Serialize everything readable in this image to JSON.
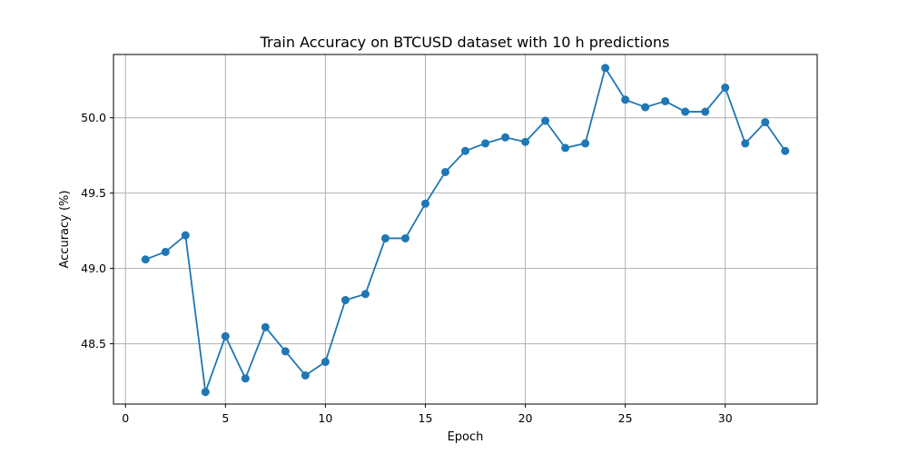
{
  "chart_data": {
    "type": "line",
    "title": "Train Accuracy on BTCUSD dataset with 10 h predictions",
    "xlabel": "Epoch",
    "ylabel": "Accuracy (%)",
    "xlim": [
      -0.6,
      34.6
    ],
    "ylim": [
      48.1,
      50.42
    ],
    "xticks": [
      0,
      5,
      10,
      15,
      20,
      25,
      30
    ],
    "yticks": [
      48.5,
      49.0,
      49.5,
      50.0
    ],
    "xtick_labels": [
      "0",
      "5",
      "10",
      "15",
      "20",
      "25",
      "30"
    ],
    "ytick_labels": [
      "48.5",
      "49.0",
      "49.5",
      "50.0"
    ],
    "grid": true,
    "color": "#1f77b4",
    "x": [
      1,
      2,
      3,
      4,
      5,
      6,
      7,
      8,
      9,
      10,
      11,
      12,
      13,
      14,
      15,
      16,
      17,
      18,
      19,
      20,
      21,
      22,
      23,
      24,
      25,
      26,
      27,
      28,
      29,
      30,
      31,
      32,
      33
    ],
    "y": [
      49.06,
      49.11,
      49.22,
      48.18,
      48.55,
      48.27,
      48.61,
      48.45,
      48.29,
      48.38,
      48.79,
      48.83,
      49.2,
      49.2,
      49.43,
      49.64,
      49.78,
      49.83,
      49.87,
      49.84,
      49.98,
      49.8,
      49.83,
      50.33,
      50.12,
      50.07,
      50.11,
      50.04,
      50.04,
      50.2,
      49.83,
      49.97,
      49.78
    ]
  }
}
